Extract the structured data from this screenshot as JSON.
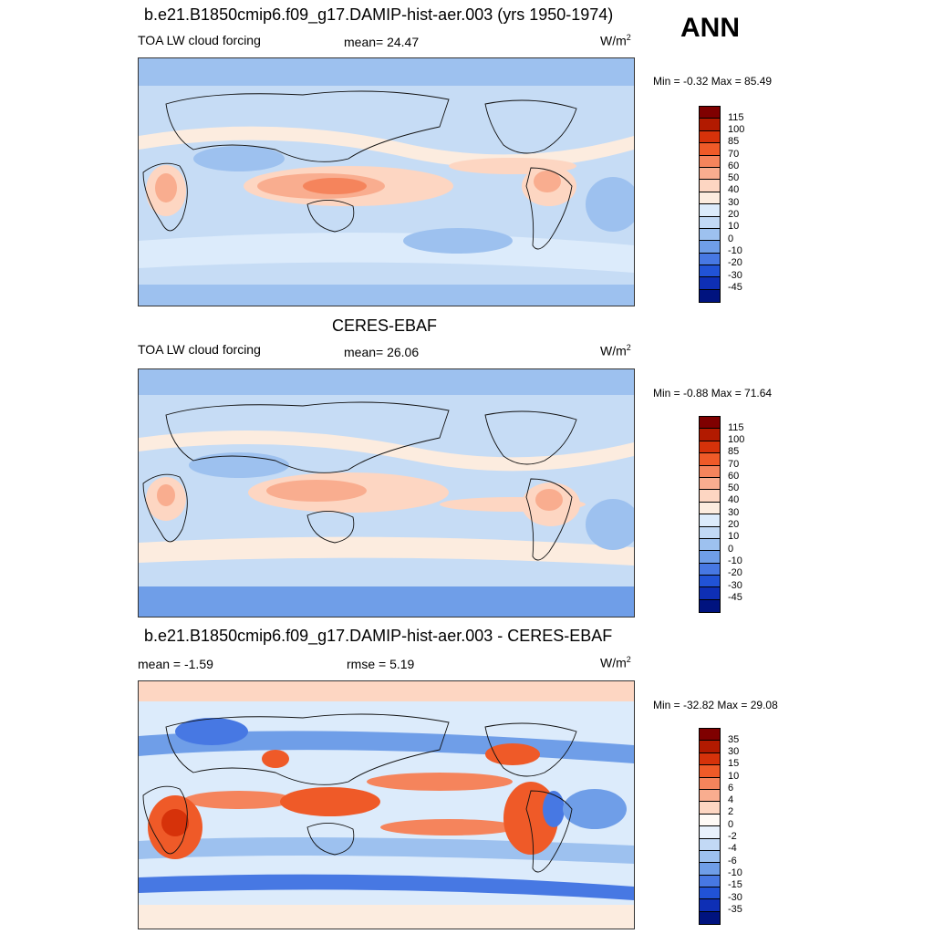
{
  "season": "ANN",
  "panels": [
    {
      "title": "b.e21.B1850cmip6.f09_g17.DAMIP-hist-aer.003 (yrs 1950-1974)",
      "left_label": "TOA LW cloud forcing",
      "center_label": "mean=  24.47",
      "units_base": "W/m",
      "units_exp": "2",
      "minmax": "Min =  -0.32 Max =  85.49",
      "colorbar_labels": [
        "115",
        "100",
        "85",
        "70",
        "60",
        "50",
        "40",
        "30",
        "20",
        "10",
        "0",
        "-10",
        "-20",
        "-30",
        "-45"
      ],
      "colors": [
        "#7f0000",
        "#b21a00",
        "#d6320a",
        "#ef5a28",
        "#f5845c",
        "#f9ad8f",
        "#fdd6c2",
        "#fcecdf",
        "#dcebfb",
        "#c2d9f5",
        "#9dc1ef",
        "#6f9ee8",
        "#4778e3",
        "#2153d6",
        "#0e2fb5",
        "#00137f"
      ]
    },
    {
      "title": "CERES-EBAF",
      "left_label": "TOA LW cloud forcing",
      "center_label": "mean=  26.06",
      "units_base": "W/m",
      "units_exp": "2",
      "minmax": "Min =  -0.88 Max =  71.64",
      "colorbar_labels": [
        "115",
        "100",
        "85",
        "70",
        "60",
        "50",
        "40",
        "30",
        "20",
        "10",
        "0",
        "-10",
        "-20",
        "-30",
        "-45"
      ],
      "colors": [
        "#7f0000",
        "#b21a00",
        "#d6320a",
        "#ef5a28",
        "#f5845c",
        "#f9ad8f",
        "#fdd6c2",
        "#fcecdf",
        "#dcebfb",
        "#c2d9f5",
        "#9dc1ef",
        "#6f9ee8",
        "#4778e3",
        "#2153d6",
        "#0e2fb5",
        "#00137f"
      ]
    },
    {
      "title": "b.e21.B1850cmip6.f09_g17.DAMIP-hist-aer.003 - CERES-EBAF",
      "left_label": "mean =  -1.59",
      "center_label": "rmse =   5.19",
      "units_base": "W/m",
      "units_exp": "2",
      "minmax": "Min = -32.82 Max =  29.08",
      "colorbar_labels": [
        "35",
        "30",
        "15",
        "10",
        "6",
        "4",
        "2",
        "0",
        "-2",
        "-4",
        "-6",
        "-10",
        "-15",
        "-30",
        "-35"
      ],
      "colors": [
        "#7f0000",
        "#b21a00",
        "#d6320a",
        "#ef5a28",
        "#f5845c",
        "#f9ad8f",
        "#fdd6c2",
        "#fefaf6",
        "#e8f1fc",
        "#c2d9f5",
        "#9dc1ef",
        "#6f9ee8",
        "#4778e3",
        "#2153d6",
        "#0e2fb5",
        "#00137f"
      ]
    }
  ]
}
